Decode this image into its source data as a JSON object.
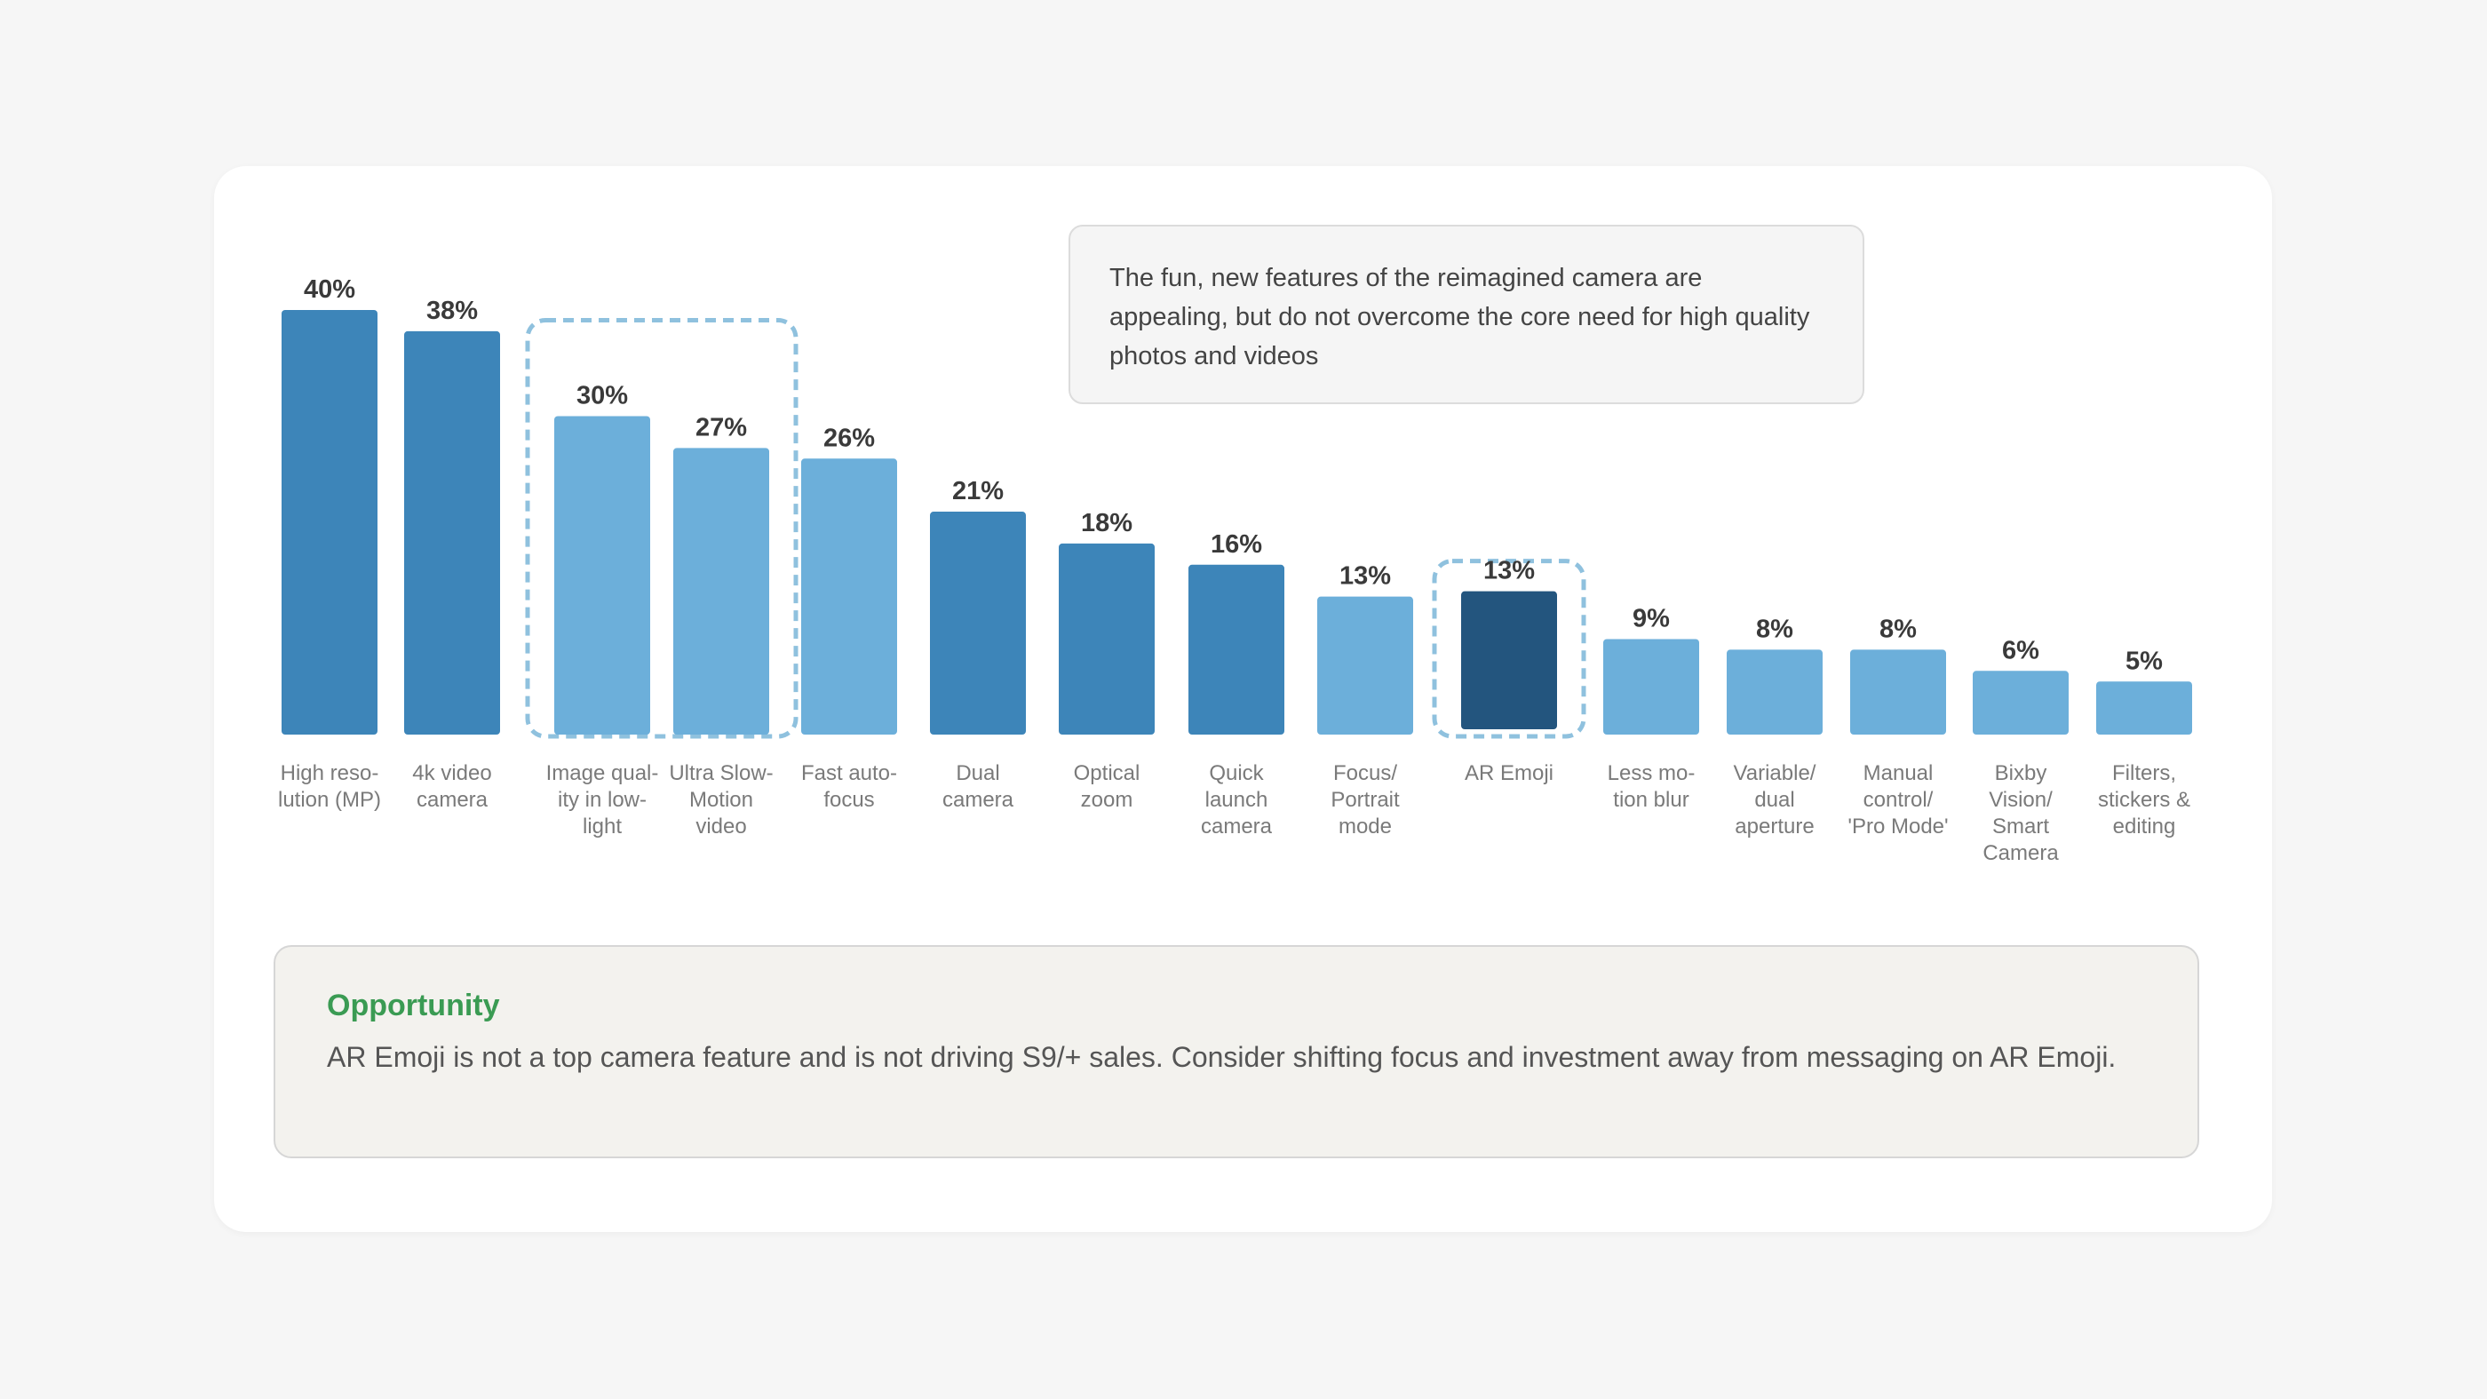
{
  "callout": {
    "text": "The fun, new features of the reimagined camera are appealing, but do not overcome the core need for high quality photos and videos"
  },
  "opportunity": {
    "title": "Opportunity",
    "text": "AR Emoji is not a top camera feature and is not driving S9/+ sales. Consider shifting focus and investment away from messaging on AR Emoji."
  },
  "colors": {
    "core": "#3d85b9",
    "new_feature": "#6cafda",
    "highlight": "#23557e",
    "dashed_box": "#8fc1de"
  },
  "chart_data": {
    "type": "bar",
    "categories": [
      [
        "High reso-",
        "lution (MP)"
      ],
      [
        "4k video",
        "camera"
      ],
      [
        "Image qual-",
        "ity in low-",
        "light"
      ],
      [
        "Ultra Slow-",
        "Motion",
        "video"
      ],
      [
        "Fast auto-",
        "focus"
      ],
      [
        "Dual",
        "camera"
      ],
      [
        "Optical",
        "zoom"
      ],
      [
        "Quick",
        "launch",
        "camera"
      ],
      [
        "Focus/",
        "Portrait",
        "mode"
      ],
      [
        "AR Emoji"
      ],
      [
        "Less mo-",
        "tion blur"
      ],
      [
        "Variable/",
        "dual",
        "aperture"
      ],
      [
        "Manual",
        "control/",
        "'Pro Mode'"
      ],
      [
        "Bixby",
        "Vision/",
        "Smart",
        "Camera"
      ],
      [
        "Filters,",
        "stickers &",
        "editing"
      ]
    ],
    "values": [
      40,
      38,
      30,
      27,
      26,
      21,
      18,
      16,
      13,
      13,
      9,
      8,
      8,
      6,
      5
    ],
    "value_labels": [
      "40%",
      "38%",
      "30%",
      "27%",
      "26%",
      "21%",
      "18%",
      "16%",
      "13%",
      "13%",
      "9%",
      "8%",
      "8%",
      "6%",
      "5%"
    ],
    "bar_color_keys": [
      "core",
      "core",
      "new_feature",
      "new_feature",
      "new_feature",
      "core",
      "core",
      "core",
      "new_feature",
      "highlight",
      "new_feature",
      "new_feature",
      "new_feature",
      "new_feature",
      "new_feature"
    ],
    "highlighted_groups": [
      [
        2,
        3
      ],
      [
        9
      ]
    ],
    "ylim": [
      0,
      40
    ],
    "grid": false,
    "legend": "none"
  }
}
